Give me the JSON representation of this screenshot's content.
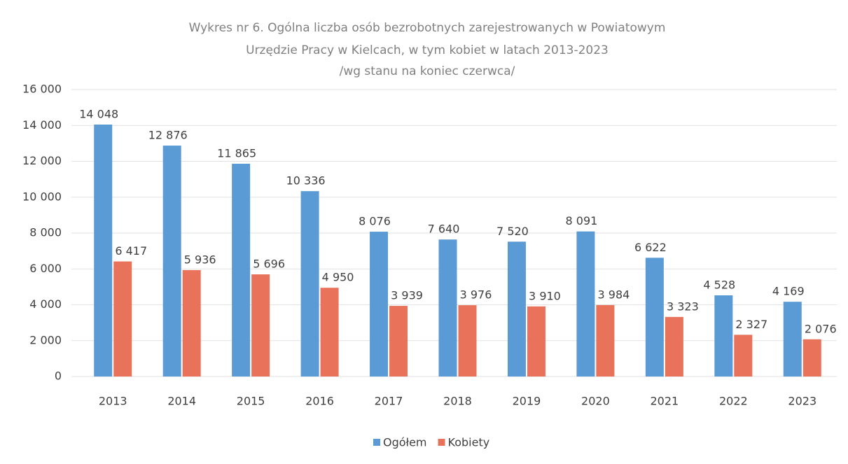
{
  "chart_data": {
    "type": "bar",
    "title": [
      "Wykres nr 6. Ogólna liczba osób bezrobotnych zarejestrowanych w Powiatowym",
      "Urzędzie Pracy w Kielcach, w tym kobiet w latach 2013-2023",
      "/wg stanu na koniec czerwca/"
    ],
    "categories": [
      "2013",
      "2014",
      "2015",
      "2016",
      "2017",
      "2018",
      "2019",
      "2020",
      "2021",
      "2022",
      "2023"
    ],
    "series": [
      {
        "name": "Ogółem",
        "color": "#5b9bd5",
        "values": [
          14048,
          12876,
          11865,
          10336,
          8076,
          7640,
          7520,
          8091,
          6622,
          4528,
          4169
        ],
        "value_labels": [
          "14 048",
          "12 876",
          "11 865",
          "10 336",
          "8 076",
          "7 640",
          "7 520",
          "8 091",
          "6 622",
          "4 528",
          "4 169"
        ]
      },
      {
        "name": "Kobiety",
        "color": "#e8735a",
        "values": [
          6417,
          5936,
          5696,
          4950,
          3939,
          3976,
          3910,
          3984,
          3323,
          2327,
          2076
        ],
        "value_labels": [
          "6 417",
          "5 936",
          "5 696",
          "4 950",
          "3 939",
          "3 976",
          "3 910",
          "3 984",
          "3 323",
          "2 327",
          "2 076"
        ]
      }
    ],
    "ylim": [
      0,
      16000
    ],
    "yticks": [
      0,
      {
        "value": 2000,
        "label": "2 000"
      },
      {
        "value": 4000,
        "label": "4 000"
      },
      {
        "value": 6000,
        "label": "6 000"
      },
      {
        "value": 8000,
        "label": "8 000"
      },
      {
        "value": 10000,
        "label": "10 000"
      },
      {
        "value": 12000,
        "label": "12 000"
      },
      {
        "value": 14000,
        "label": "14 000"
      },
      {
        "value": 16000,
        "label": "16 000"
      }
    ],
    "grid": true,
    "legend": "bottom"
  }
}
